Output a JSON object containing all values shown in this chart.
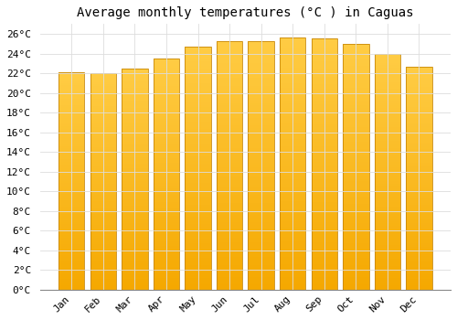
{
  "title": "Average monthly temperatures (°C ) in Caguas",
  "months": [
    "Jan",
    "Feb",
    "Mar",
    "Apr",
    "May",
    "Jun",
    "Jul",
    "Aug",
    "Sep",
    "Oct",
    "Nov",
    "Dec"
  ],
  "values": [
    22.1,
    22.0,
    22.5,
    23.5,
    24.7,
    25.3,
    25.3,
    25.6,
    25.5,
    25.0,
    24.0,
    22.7
  ],
  "bar_color_top": "#FFCC44",
  "bar_color_bottom": "#F5A800",
  "bar_edge_color": "#C8880A",
  "background_color": "#FFFFFF",
  "grid_color": "#DDDDDD",
  "ylim": [
    0,
    27
  ],
  "yticks": [
    0,
    2,
    4,
    6,
    8,
    10,
    12,
    14,
    16,
    18,
    20,
    22,
    24,
    26
  ],
  "title_fontsize": 10,
  "tick_fontsize": 8,
  "font_family": "monospace"
}
